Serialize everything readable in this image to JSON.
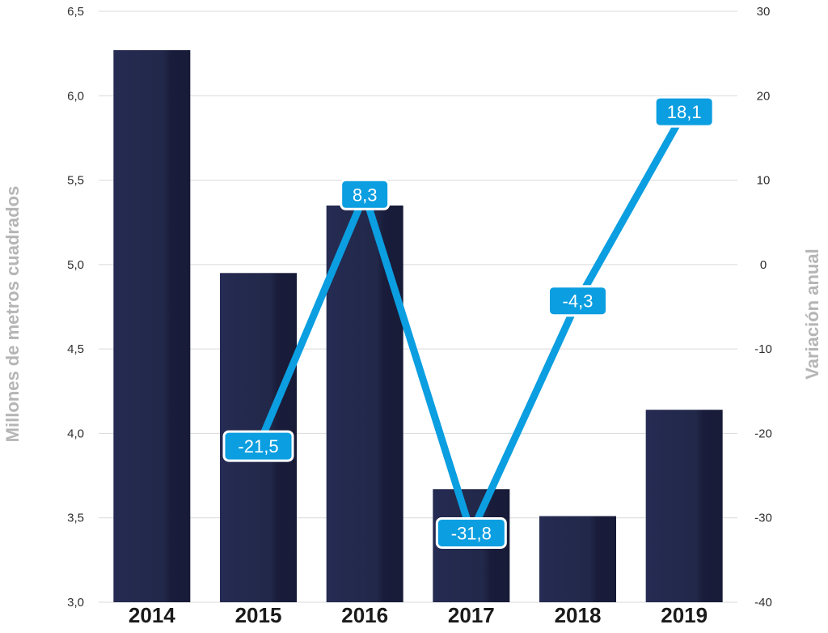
{
  "chart_data": {
    "type": "bar",
    "categories": [
      "2014",
      "2015",
      "2016",
      "2017",
      "2018",
      "2019"
    ],
    "series": [
      {
        "type": "bar",
        "axis": "left",
        "values": [
          6.27,
          4.95,
          5.35,
          3.67,
          3.51,
          4.14
        ],
        "color": "#1f2448"
      },
      {
        "type": "line",
        "axis": "right",
        "values": [
          null,
          -21.5,
          8.3,
          -31.8,
          -4.3,
          18.1
        ],
        "labels": [
          "",
          "-21,5",
          "8,3",
          "-31,8",
          "-4,3",
          "18,1"
        ],
        "color": "#0b9ee0"
      }
    ],
    "ylabel": "Millones de metros cuadrados",
    "ylabel_right": "Variación anual",
    "ylim": [
      3.0,
      6.5
    ],
    "ylim_right": [
      -40,
      30
    ],
    "yticks": [
      "6,5",
      "6,0",
      "5,5",
      "5,0",
      "4,5",
      "4,0",
      "3,5",
      "3,0"
    ],
    "yticks_right": [
      "30",
      "20",
      "10",
      "0",
      "-10",
      "-20",
      "-30",
      "-40"
    ],
    "grid": true
  }
}
